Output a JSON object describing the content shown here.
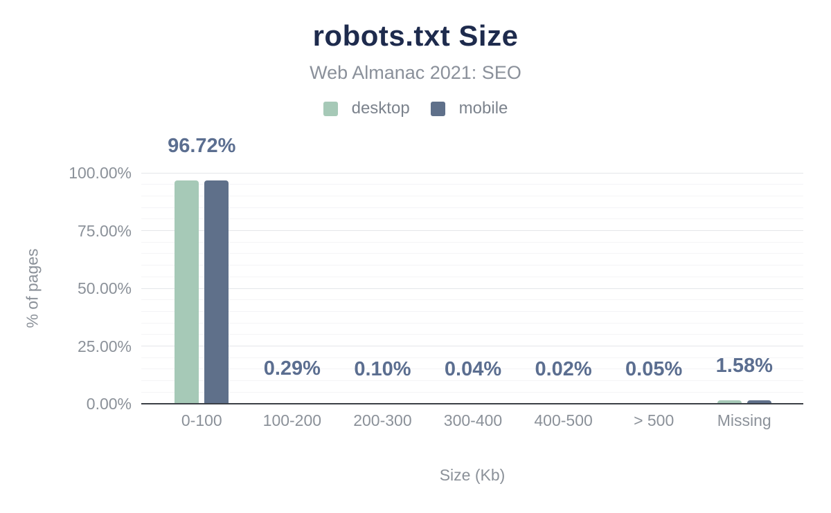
{
  "title": "robots.txt Size",
  "subtitle": "Web Almanac 2021: SEO",
  "legend": [
    {
      "name": "desktop",
      "label": "desktop",
      "color": "#a6c9b7"
    },
    {
      "name": "mobile",
      "label": "mobile",
      "color": "#5f708a"
    }
  ],
  "chart_data": {
    "type": "bar",
    "title": "robots.txt Size",
    "subtitle": "Web Almanac 2021: SEO",
    "categories": [
      "0-100",
      "100-200",
      "200-300",
      "300-400",
      "400-500",
      "> 500",
      "Missing"
    ],
    "series": [
      {
        "name": "desktop",
        "color": "#a6c9b7",
        "values": [
          96.72,
          0.29,
          0.1,
          0.04,
          0.02,
          0.05,
          1.58
        ]
      },
      {
        "name": "mobile",
        "color": "#5f708a",
        "values": [
          96.72,
          0.29,
          0.1,
          0.04,
          0.02,
          0.05,
          1.58
        ]
      }
    ],
    "value_labels": [
      "96.72%",
      "0.29%",
      "0.10%",
      "0.04%",
      "0.02%",
      "0.05%",
      "1.58%"
    ],
    "xlabel": "Size (Kb)",
    "ylabel": "% of pages",
    "ylim": [
      0,
      100
    ],
    "yticks": [
      {
        "value": 0,
        "label": "0.00%"
      },
      {
        "value": 25,
        "label": "25.00%"
      },
      {
        "value": 50,
        "label": "50.00%"
      },
      {
        "value": 75,
        "label": "75.00%"
      },
      {
        "value": 100,
        "label": "100.00%"
      }
    ],
    "grid": {
      "horizontal": true,
      "minor_step": 5,
      "major_step": 25
    },
    "legend_position": "top"
  },
  "colors": {
    "title": "#1e2b4d",
    "subtitle": "#8a909a",
    "axis_text": "#8b9199",
    "value_label": "#5b6e90",
    "axis_line": "#3a3e45",
    "grid_minor": "#f4f4f6",
    "grid_major": "#e4e6e9",
    "background": "#ffffff"
  }
}
